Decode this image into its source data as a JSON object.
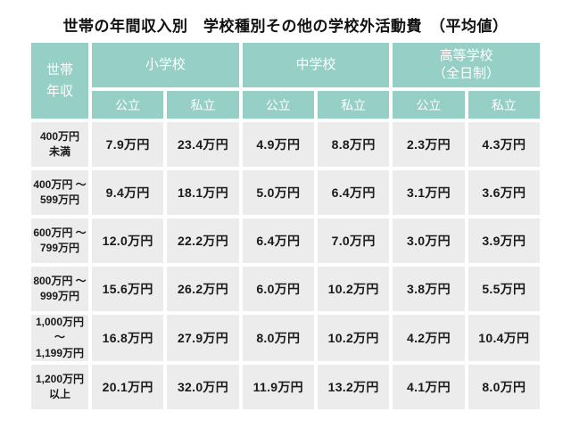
{
  "title": "世帯の年間収入別　学校種別その他の学校外活動費　（平均値）",
  "colors": {
    "header_bg": "#95cfc5",
    "header_text": "#ffffff",
    "cell_bg": "#ececec",
    "cell_text": "#1a1a1a",
    "page_bg": "#ffffff"
  },
  "table": {
    "corner_label": "世帯\n年収",
    "groups": [
      {
        "label": "小学校",
        "sub": [
          "公立",
          "私立"
        ]
      },
      {
        "label": "中学校",
        "sub": [
          "公立",
          "私立"
        ]
      },
      {
        "label": "高等学校\n（全日制）",
        "sub": [
          "公立",
          "私立"
        ]
      }
    ],
    "rows": [
      {
        "label": "400万円\n未満",
        "values": [
          "7.9万円",
          "23.4万円",
          "4.9万円",
          "8.8万円",
          "2.3万円",
          "4.3万円"
        ]
      },
      {
        "label": "400万円 ～\n599万円",
        "values": [
          "9.4万円",
          "18.1万円",
          "5.0万円",
          "6.4万円",
          "3.1万円",
          "3.6万円"
        ]
      },
      {
        "label": "600万円 ～\n799万円",
        "values": [
          "12.0万円",
          "22.2万円",
          "6.4万円",
          "7.0万円",
          "3.0万円",
          "3.9万円"
        ]
      },
      {
        "label": "800万円 ～\n999万円",
        "values": [
          "15.6万円",
          "26.2万円",
          "6.0万円",
          "10.2万円",
          "3.8万円",
          "5.5万円"
        ]
      },
      {
        "label": "1,000万円～\n1,199万円",
        "values": [
          "16.8万円",
          "27.9万円",
          "8.0万円",
          "10.2万円",
          "4.2万円",
          "10.4万円"
        ]
      },
      {
        "label": "1,200万円\n以上",
        "values": [
          "20.1万円",
          "32.0万円",
          "11.9万円",
          "13.2万円",
          "4.1万円",
          "8.0万円"
        ]
      }
    ]
  },
  "chart_data": {
    "type": "table",
    "title": "世帯の年間収入別　学校種別その他の学校外活動費（平均値）",
    "row_header": "世帯年収",
    "unit": "万円",
    "categories": [
      "400万円未満",
      "400万円～599万円",
      "600万円～799万円",
      "800万円～999万円",
      "1,000万円～1,199万円",
      "1,200万円以上"
    ],
    "series": [
      {
        "name": "小学校 公立",
        "values": [
          7.9,
          9.4,
          12.0,
          15.6,
          16.8,
          20.1
        ]
      },
      {
        "name": "小学校 私立",
        "values": [
          23.4,
          18.1,
          22.2,
          26.2,
          27.9,
          32.0
        ]
      },
      {
        "name": "中学校 公立",
        "values": [
          4.9,
          5.0,
          6.4,
          6.0,
          8.0,
          11.9
        ]
      },
      {
        "name": "中学校 私立",
        "values": [
          8.8,
          6.4,
          7.0,
          10.2,
          10.2,
          13.2
        ]
      },
      {
        "name": "高等学校（全日制） 公立",
        "values": [
          2.3,
          3.1,
          3.0,
          3.8,
          4.2,
          4.1
        ]
      },
      {
        "name": "高等学校（全日制） 私立",
        "values": [
          4.3,
          3.6,
          3.9,
          5.5,
          10.4,
          8.0
        ]
      }
    ]
  }
}
